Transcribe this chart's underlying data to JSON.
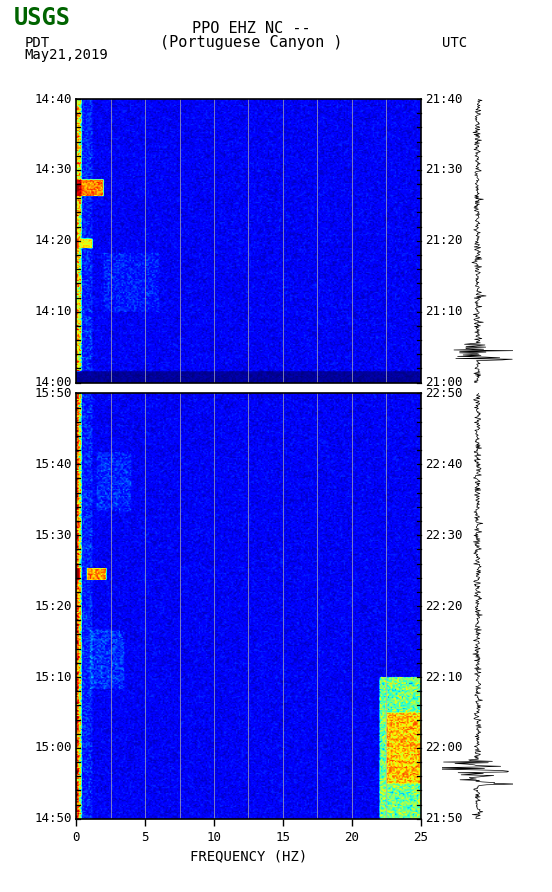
{
  "title_line1": "PPO EHZ NC --",
  "title_line2": "(Portuguese Canyon )",
  "date_label": "May21,2019",
  "left_tz": "PDT",
  "right_tz": "UTC",
  "freq_label": "FREQUENCY (HZ)",
  "freq_min": 0,
  "freq_max": 25,
  "freq_ticks": [
    0,
    5,
    10,
    15,
    20,
    25
  ],
  "freq_grid_lines": [
    2.5,
    5,
    7.5,
    10,
    12.5,
    15,
    17.5,
    20,
    22.5
  ],
  "panel1_time_labels_left": [
    "14:00",
    "14:10",
    "14:20",
    "14:30",
    "14:40"
  ],
  "panel1_time_labels_right": [
    "21:00",
    "21:10",
    "21:20",
    "21:30",
    "21:40"
  ],
  "panel2_time_labels_left": [
    "14:50",
    "15:00",
    "15:10",
    "15:20",
    "15:30",
    "15:40",
    "15:50"
  ],
  "panel2_time_labels_right": [
    "21:50",
    "22:00",
    "22:10",
    "22:20",
    "22:30",
    "22:40",
    "22:50"
  ],
  "panel1_minutes": 40,
  "panel2_minutes": 60,
  "colormap": "jet",
  "bg_color": "#ffffff",
  "spectrogram_bg": "#00008B",
  "logo_color": "#006400",
  "grid_color": "#b0b0b0",
  "grid_alpha": 0.7,
  "grid_lw": 0.7
}
